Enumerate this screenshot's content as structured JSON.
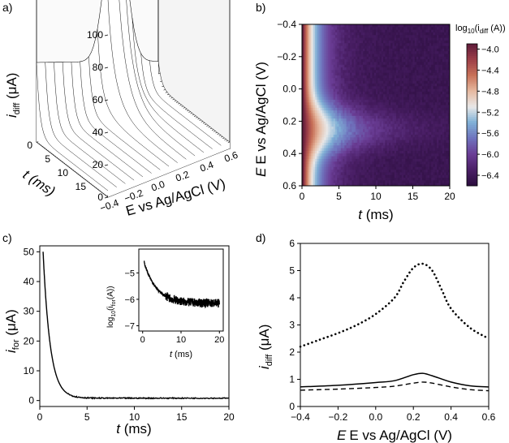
{
  "colors": {
    "line": "#000000",
    "frame": "#000000"
  },
  "chart_data": [
    {
      "id": "a",
      "panel_label": "a)",
      "type": "surface3d",
      "title": "",
      "xlabel": "E vs Ag/AgCl (V)",
      "ylabel": "t (ms)",
      "zlabel_main": "i",
      "zlabel_sub": "diff",
      "zlabel_unit": " (μA)",
      "xticks": [
        "−0.4",
        "−0.2",
        "0.0",
        "0.2",
        "0.4",
        "0.6"
      ],
      "yticks": [
        "0",
        "5",
        "10",
        "15"
      ],
      "zticks": [
        "0",
        "20",
        "40",
        "60",
        "80",
        "100"
      ],
      "xlim": [
        -0.4,
        0.6
      ],
      "ylim": [
        0,
        20
      ],
      "zlim": [
        0,
        100
      ],
      "peak_E": 0.25,
      "peak_max": 100,
      "peak_decay_ms": 2.6,
      "baseline": 4,
      "wire_count_t": 40,
      "wire_count_E": 14
    },
    {
      "id": "b",
      "panel_label": "b)",
      "type": "heatmap",
      "xlabel": "t (ms)",
      "ylabel": "E vs Ag/AgCl (V)",
      "xticks": [
        "0",
        "5",
        "10",
        "15",
        "20"
      ],
      "xtick_values": [
        0,
        5,
        10,
        15,
        20
      ],
      "yticks": [
        "−0.4",
        "−0.2",
        "0.0",
        "0.2",
        "0.4",
        "0.6"
      ],
      "ytick_values": [
        -0.4,
        -0.2,
        0.0,
        0.2,
        0.4,
        0.6
      ],
      "xlim": [
        0,
        20
      ],
      "ylim": [
        -0.4,
        0.6
      ],
      "colorbar_label_prefix": "log",
      "colorbar_label_base": "10",
      "colorbar_label_mid": "(i",
      "colorbar_label_sub": "diff",
      "colorbar_label_end": " (A))",
      "colorbar_ticks": [
        "−4.0",
        "−4.4",
        "−4.8",
        "−5.2",
        "−5.6",
        "−6.0",
        "−6.4"
      ],
      "colorbar_values": [
        -4.0,
        -4.4,
        -4.8,
        -5.2,
        -5.6,
        -6.0,
        -6.4
      ],
      "colorbar_range": [
        -6.6,
        -3.9
      ],
      "colormap": [
        "#2b0d3d",
        "#4a1f66",
        "#6a3d95",
        "#6f73bd",
        "#7fb0d6",
        "#e8e8e8",
        "#e6b9a0",
        "#c87158",
        "#9c3e48",
        "#5e1b3a"
      ]
    },
    {
      "id": "c",
      "panel_label": "c)",
      "type": "line",
      "xlabel": "t (ms)",
      "ylabel_main": "i",
      "ylabel_sub": "for",
      "ylabel_unit": " (μA)",
      "xticks": [
        "0",
        "5",
        "10",
        "15",
        "20"
      ],
      "xtick_values": [
        0,
        5,
        10,
        15,
        20
      ],
      "yticks": [
        "0",
        "10",
        "20",
        "30",
        "40",
        "50"
      ],
      "ytick_values": [
        0,
        10,
        20,
        30,
        40,
        50
      ],
      "xlim": [
        0,
        20
      ],
      "ylim": [
        -2,
        52
      ],
      "series": [
        {
          "name": "i_for",
          "start_t": 0.35,
          "start_value": 50,
          "plateau": 0.8,
          "decay_ms": 0.75
        }
      ],
      "inset": {
        "xlabel": "t (ms)",
        "ylabel_main": "log",
        "ylabel_base": "10",
        "ylabel_mid": "(i",
        "ylabel_sub": "for",
        "ylabel_end": "(A))",
        "xticks": [
          "0",
          "10",
          "20"
        ],
        "xtick_values": [
          0,
          10,
          20
        ],
        "yticks": [
          "−5",
          "−6",
          "−7"
        ],
        "ytick_values": [
          -5,
          -6,
          -7
        ],
        "xlim": [
          -1,
          21
        ],
        "ylim": [
          -7.2,
          -4.1
        ]
      }
    },
    {
      "id": "d",
      "panel_label": "d)",
      "type": "line",
      "xlabel": "E vs Ag/AgCl (V)",
      "ylabel_main": "i",
      "ylabel_sub": "diff",
      "ylabel_unit": " (μA)",
      "xticks": [
        "−0.4",
        "−0.2",
        "0.0",
        "0.2",
        "0.4",
        "0.6"
      ],
      "xtick_values": [
        -0.4,
        -0.2,
        0.0,
        0.2,
        0.4,
        0.6
      ],
      "yticks": [
        "0",
        "1",
        "2",
        "3",
        "4",
        "5",
        "6"
      ],
      "ytick_values": [
        0,
        1,
        2,
        3,
        4,
        5,
        6
      ],
      "xlim": [
        -0.4,
        0.6
      ],
      "ylim": [
        0,
        6
      ],
      "series": [
        {
          "name": "dotted",
          "style": "dotted",
          "x": [
            -0.4,
            -0.3,
            -0.2,
            -0.1,
            0.0,
            0.1,
            0.15,
            0.2,
            0.25,
            0.3,
            0.35,
            0.4,
            0.5,
            0.6
          ],
          "y": [
            2.2,
            2.45,
            2.7,
            3.0,
            3.4,
            4.0,
            4.6,
            5.1,
            5.25,
            5.0,
            4.3,
            3.6,
            2.9,
            2.5
          ]
        },
        {
          "name": "solid",
          "style": "solid",
          "x": [
            -0.4,
            -0.2,
            0.0,
            0.1,
            0.2,
            0.25,
            0.3,
            0.4,
            0.5,
            0.6
          ],
          "y": [
            0.72,
            0.78,
            0.88,
            0.95,
            1.17,
            1.22,
            1.13,
            0.9,
            0.76,
            0.72
          ]
        },
        {
          "name": "dashed",
          "style": "dashed",
          "x": [
            -0.4,
            -0.2,
            0.0,
            0.1,
            0.2,
            0.25,
            0.3,
            0.4,
            0.5,
            0.6
          ],
          "y": [
            0.6,
            0.64,
            0.7,
            0.75,
            0.86,
            0.9,
            0.86,
            0.72,
            0.62,
            0.58
          ]
        }
      ]
    }
  ]
}
